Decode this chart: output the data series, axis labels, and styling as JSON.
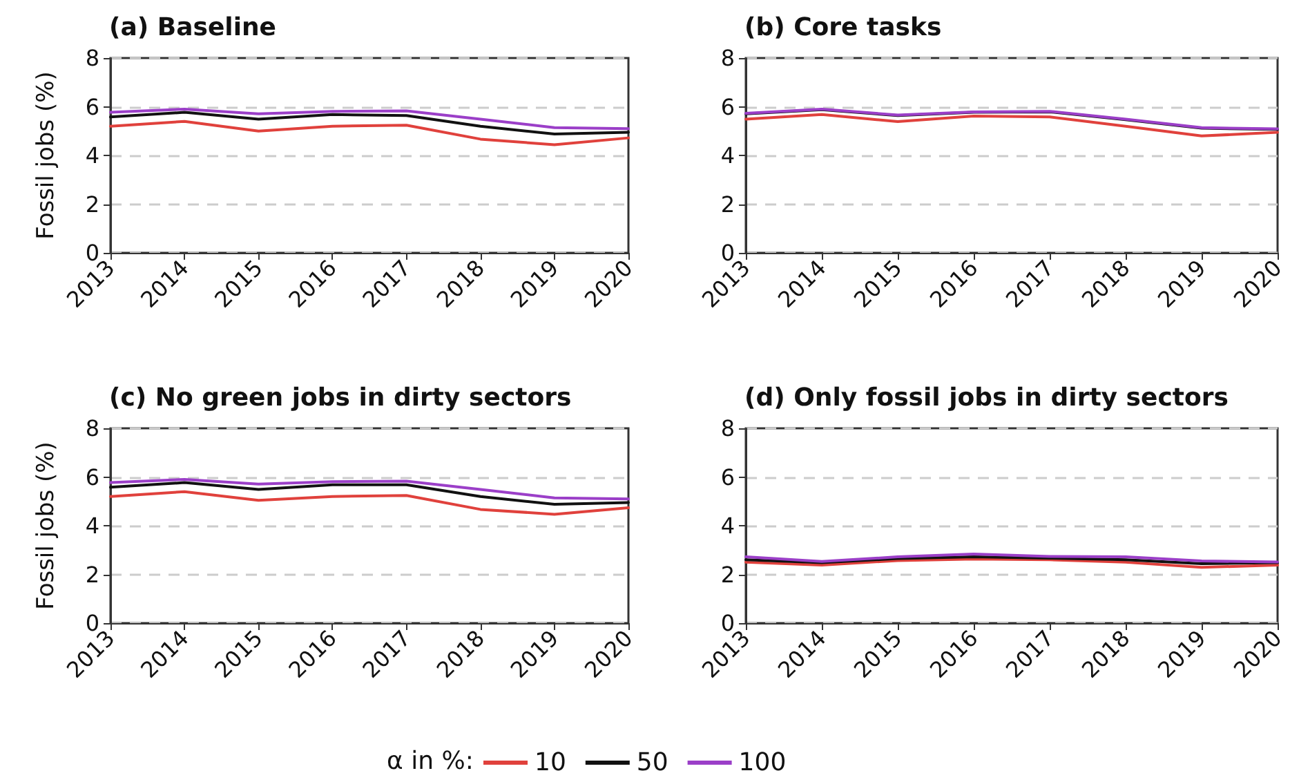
{
  "chart_data": [
    {
      "type": "line",
      "title": "(a) Baseline",
      "ylabel": "Fossil jobs (%)",
      "categories": [
        "2013",
        "2014",
        "2015",
        "2016",
        "2017",
        "2018",
        "2019",
        "2020"
      ],
      "ylim": [
        0,
        8
      ],
      "yticks": [
        0,
        2,
        4,
        6,
        8
      ],
      "grid": "y",
      "legend": "bottom",
      "legend_title": "α in %:",
      "marker": "none",
      "line_style": "solid",
      "series": [
        {
          "name": "10",
          "color": "#e0413c",
          "values": [
            5.2,
            5.4,
            5.0,
            5.2,
            5.24,
            4.67,
            4.44,
            4.72
          ]
        },
        {
          "name": "50",
          "color": "#111111",
          "values": [
            5.58,
            5.77,
            5.49,
            5.68,
            5.64,
            5.2,
            4.88,
            4.95
          ]
        },
        {
          "name": "100",
          "color": "#9b3fc8",
          "values": [
            5.77,
            5.9,
            5.71,
            5.81,
            5.83,
            5.49,
            5.14,
            5.1
          ]
        }
      ]
    },
    {
      "type": "line",
      "title": "(b) Core tasks",
      "categories": [
        "2013",
        "2014",
        "2015",
        "2016",
        "2017",
        "2018",
        "2019",
        "2020"
      ],
      "ylim": [
        0,
        8
      ],
      "yticks": [
        0,
        2,
        4,
        6,
        8
      ],
      "grid": "y",
      "marker": "none",
      "line_style": "solid",
      "series": [
        {
          "name": "10",
          "color": "#e0413c",
          "values": [
            5.49,
            5.68,
            5.39,
            5.62,
            5.58,
            5.2,
            4.8,
            4.95
          ]
        },
        {
          "name": "50",
          "color": "#111111",
          "values": [
            5.71,
            5.88,
            5.64,
            5.77,
            5.79,
            5.47,
            5.12,
            5.07
          ]
        },
        {
          "name": "100",
          "color": "#9b3fc8",
          "values": [
            5.73,
            5.9,
            5.66,
            5.79,
            5.81,
            5.49,
            5.14,
            5.09
          ]
        }
      ]
    },
    {
      "type": "line",
      "title": "(c) No green jobs in dirty sectors",
      "ylabel": "Fossil jobs (%)",
      "categories": [
        "2013",
        "2014",
        "2015",
        "2016",
        "2017",
        "2018",
        "2019",
        "2020"
      ],
      "ylim": [
        0,
        8
      ],
      "yticks": [
        0,
        2,
        4,
        6,
        8
      ],
      "grid": "y",
      "marker": "none",
      "line_style": "solid",
      "series": [
        {
          "name": "10",
          "color": "#e0413c",
          "values": [
            5.2,
            5.4,
            5.04,
            5.2,
            5.24,
            4.67,
            4.47,
            4.74
          ]
        },
        {
          "name": "50",
          "color": "#111111",
          "values": [
            5.58,
            5.77,
            5.49,
            5.68,
            5.68,
            5.2,
            4.88,
            4.95
          ]
        },
        {
          "name": "100",
          "color": "#9b3fc8",
          "values": [
            5.77,
            5.9,
            5.71,
            5.81,
            5.83,
            5.49,
            5.14,
            5.1
          ]
        }
      ]
    },
    {
      "type": "line",
      "title": "(d) Only fossil jobs in dirty sectors",
      "categories": [
        "2013",
        "2014",
        "2015",
        "2016",
        "2017",
        "2018",
        "2019",
        "2020"
      ],
      "ylim": [
        0,
        8
      ],
      "yticks": [
        0,
        2,
        4,
        6,
        8
      ],
      "grid": "y",
      "marker": "none",
      "line_style": "solid",
      "series": [
        {
          "name": "10",
          "color": "#e0413c",
          "values": [
            2.5,
            2.38,
            2.57,
            2.63,
            2.6,
            2.5,
            2.29,
            2.38
          ]
        },
        {
          "name": "50",
          "color": "#111111",
          "values": [
            2.6,
            2.48,
            2.65,
            2.72,
            2.67,
            2.6,
            2.44,
            2.48
          ]
        },
        {
          "name": "100",
          "color": "#9b3fc8",
          "values": [
            2.72,
            2.53,
            2.72,
            2.84,
            2.74,
            2.72,
            2.55,
            2.51
          ]
        }
      ]
    }
  ]
}
